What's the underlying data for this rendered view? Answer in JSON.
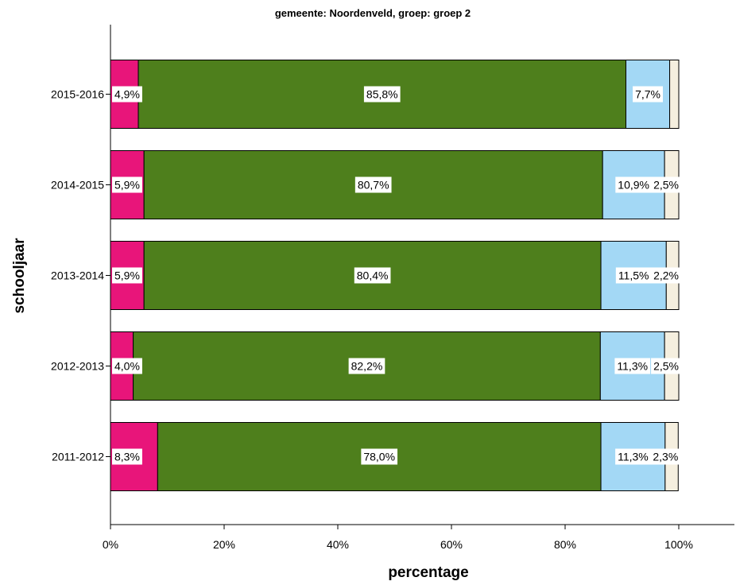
{
  "chart_data": {
    "type": "bar",
    "orientation": "horizontal",
    "stacked": true,
    "title": "gemeente: Noordenveld, groep: groep 2",
    "xlabel": "percentage",
    "ylabel": "schooljaar",
    "xlim": [
      0,
      100
    ],
    "x_tick_labels": [
      "0%",
      "20%",
      "40%",
      "60%",
      "80%",
      "100%"
    ],
    "x_tick_values": [
      0,
      20,
      40,
      60,
      80,
      100
    ],
    "grid": false,
    "categories": [
      "2015-2016",
      "2014-2015",
      "2013-2014",
      "2012-2013",
      "2011-2012"
    ],
    "series": [
      {
        "color": "#e8157a",
        "values": [
          4.9,
          5.9,
          5.9,
          4.0,
          8.3
        ],
        "labels": [
          "4,9%",
          "5,9%",
          "5,9%",
          "4,0%",
          "8,3%"
        ]
      },
      {
        "color": "#4e7f1c",
        "values": [
          85.8,
          80.7,
          80.4,
          82.2,
          78.0
        ],
        "labels": [
          "85,8%",
          "80,7%",
          "80,4%",
          "82,2%",
          "78,0%"
        ]
      },
      {
        "color": "#a3d8f5",
        "values": [
          7.7,
          10.9,
          11.5,
          11.3,
          11.3
        ],
        "labels": [
          "7,7%",
          "10,9%",
          "11,5%",
          "11,3%",
          "11,3%"
        ]
      },
      {
        "color": "#f5efdf",
        "values": [
          1.6,
          2.5,
          2.2,
          2.5,
          2.3
        ],
        "labels": [
          "",
          "2,5%",
          "2,2%",
          "2,5%",
          "2,3%"
        ]
      }
    ]
  }
}
